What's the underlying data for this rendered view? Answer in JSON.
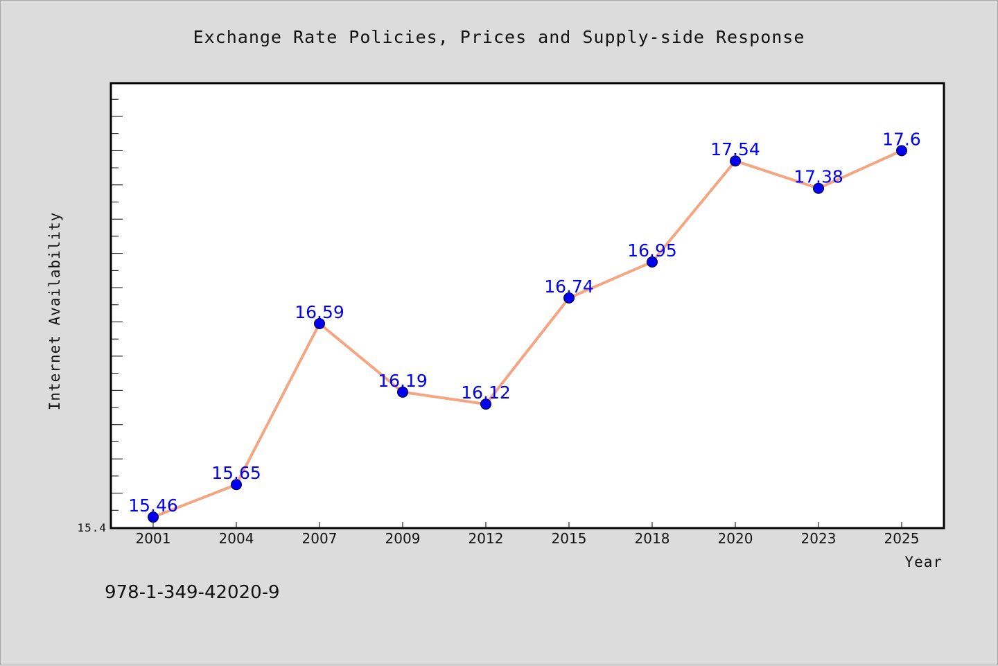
{
  "chart_data": {
    "type": "line",
    "title": "Exchange Rate Policies, Prices and Supply-side Response",
    "xlabel": "Year",
    "ylabel": "Internet Availability",
    "categories": [
      "2001",
      "2004",
      "2007",
      "2009",
      "2012",
      "2015",
      "2018",
      "2020",
      "2023",
      "2025"
    ],
    "series": [
      {
        "values": [
          15.46,
          15.65,
          16.59,
          16.19,
          16.12,
          16.74,
          16.95,
          17.54,
          17.38,
          17.6
        ]
      }
    ],
    "data_labels": [
      "15.46",
      "15.65",
      "16.59",
      "16.19",
      "16.12",
      "16.74",
      "16.95",
      "17.54",
      "17.38",
      "17.6"
    ],
    "ylim": [
      15.4,
      17.99
    ],
    "y_tick_labels": [
      {
        "value": 15.4,
        "label": "15.4"
      }
    ],
    "y_minor_tick_step": 0.1,
    "grid": false,
    "legend": "none",
    "colors": {
      "line": "#f4a582",
      "marker": "#0000ee",
      "data_label": "#0000ee",
      "plot_background": "#ffffff",
      "figure_background": "#dcdcdc"
    }
  },
  "footer": {
    "isbn": "978-1-349-42020-9"
  }
}
